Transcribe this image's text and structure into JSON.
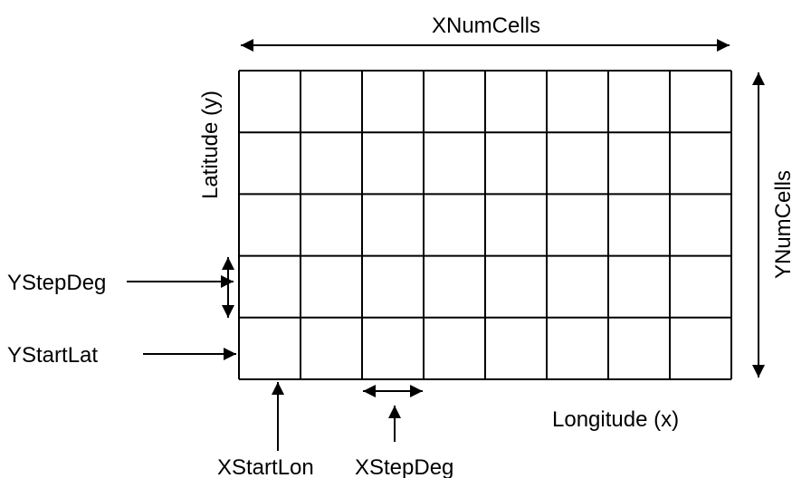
{
  "labels": {
    "x_num_cells": "XNumCells",
    "y_num_cells": "YNumCells",
    "latitude": "Latitude (y)",
    "longitude": "Longitude (x)",
    "y_step_deg": "YStepDeg",
    "y_start_lat": "YStartLat",
    "x_start_lon": "XStartLon",
    "x_step_deg": "XStepDeg"
  }
}
